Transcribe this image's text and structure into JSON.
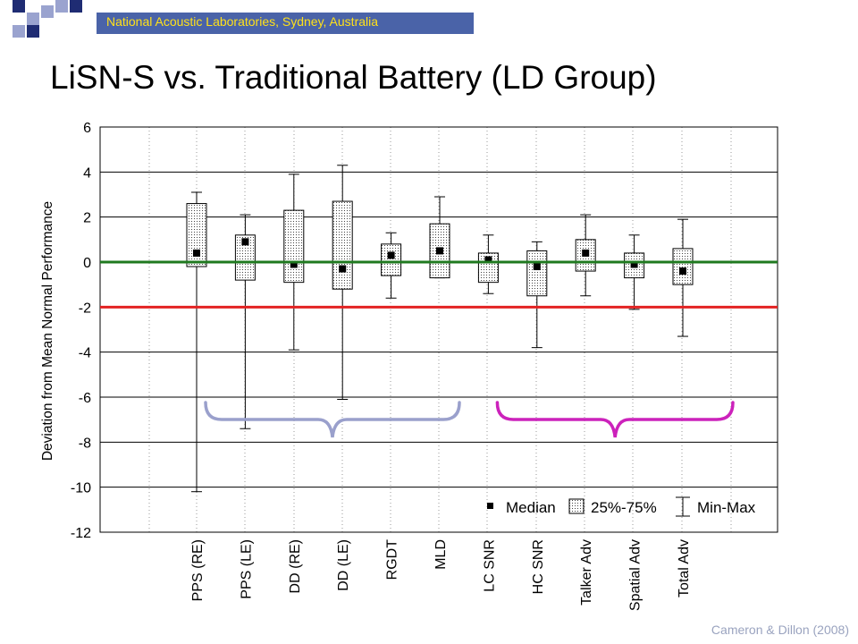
{
  "header": {
    "org_text": "National Acoustic Laboratories, Sydney, Australia",
    "bar_color": "#4a63a8",
    "text_color": "#ffe11a",
    "deco_colors": [
      "#1f2c73",
      "#9aa3cf"
    ]
  },
  "slide": {
    "title": "LiSN-S vs. Traditional Battery (LD Group)",
    "credit": "Cameron & Dillon (2008)"
  },
  "chart_data": {
    "type": "boxplot",
    "ylabel": "Deviation from Mean Normal Performance",
    "ylim": [
      -12,
      6
    ],
    "yticks": [
      6,
      4,
      2,
      0,
      -2,
      -4,
      -6,
      -8,
      -10,
      -12
    ],
    "grid": "dotted vertical",
    "categories": [
      "PPS (RE)",
      "PPS (LE)",
      "DD (RE)",
      "DD (LE)",
      "RGDT",
      "MLD",
      "LC SNR",
      "HC SNR",
      "Talker Adv",
      "Spatial Adv",
      "Total Adv"
    ],
    "series": [
      {
        "min": -10.2,
        "q1": -0.2,
        "median": 0.4,
        "q3": 2.6,
        "max": 3.1
      },
      {
        "min": -7.4,
        "q1": -0.8,
        "median": 0.9,
        "q3": 1.2,
        "max": 2.1
      },
      {
        "min": -3.9,
        "q1": -0.9,
        "median": -0.1,
        "q3": 2.3,
        "max": 3.9
      },
      {
        "min": -6.1,
        "q1": -1.2,
        "median": -0.3,
        "q3": 2.7,
        "max": 4.3
      },
      {
        "min": -1.6,
        "q1": -0.6,
        "median": 0.3,
        "q3": 0.8,
        "max": 1.3
      },
      {
        "min": -0.7,
        "q1": -0.7,
        "median": 0.5,
        "q3": 1.7,
        "max": 2.9
      },
      {
        "min": -1.4,
        "q1": -0.9,
        "median": 0.1,
        "q3": 0.4,
        "max": 1.2
      },
      {
        "min": -3.8,
        "q1": -1.5,
        "median": -0.2,
        "q3": 0.5,
        "max": 0.9
      },
      {
        "min": -1.5,
        "q1": -0.4,
        "median": 0.4,
        "q3": 1.0,
        "max": 2.1
      },
      {
        "min": -2.1,
        "q1": -0.7,
        "median": -0.1,
        "q3": 0.4,
        "max": 1.2
      },
      {
        "min": -3.3,
        "q1": -1.0,
        "median": -0.4,
        "q3": 0.6,
        "max": 1.9
      }
    ],
    "reference_lines": [
      {
        "y": 0,
        "color": "#1f7a1f"
      },
      {
        "y": -2,
        "color": "#e32222"
      }
    ],
    "groups": [
      {
        "from_category": 0,
        "to_category": 5,
        "color": "#9aa0cc"
      },
      {
        "from_category": 6,
        "to_category": 10,
        "color": "#cc22bb"
      }
    ],
    "legend": {
      "position": "bottom-right",
      "items": [
        {
          "symbol": "square",
          "label": "Median"
        },
        {
          "symbol": "box",
          "label": "25%-75%"
        },
        {
          "symbol": "whisker",
          "label": "Min-Max"
        }
      ]
    }
  }
}
